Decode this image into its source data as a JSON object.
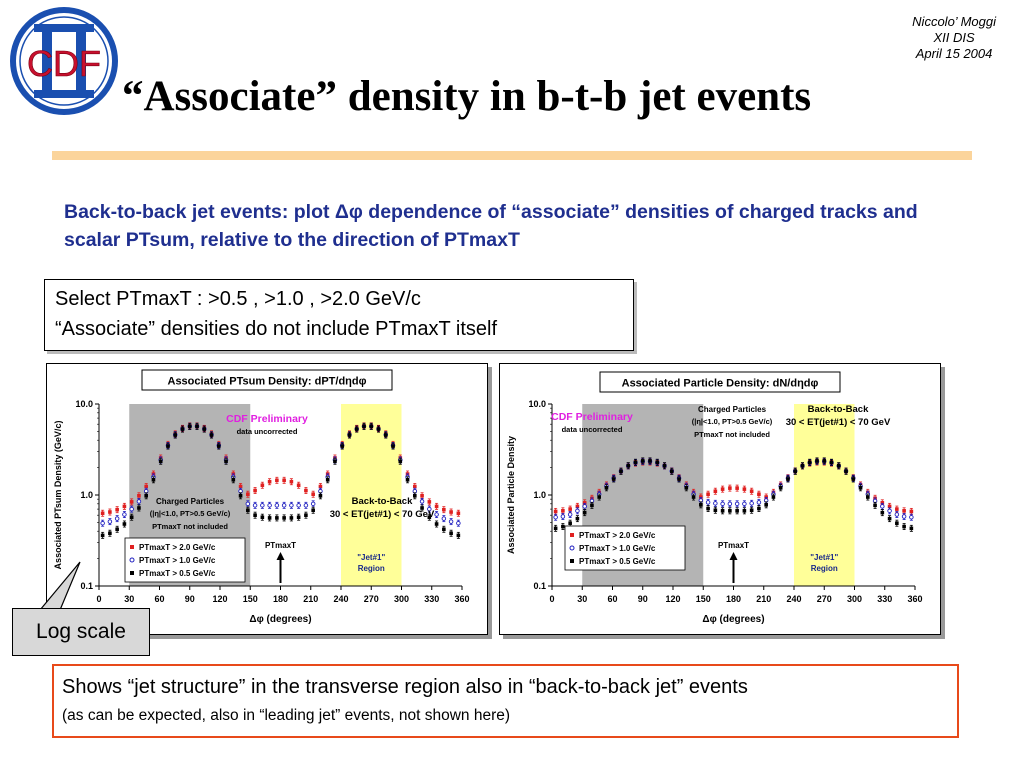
{
  "author": {
    "line1": "Niccolo’ Moggi",
    "line2": "XII DIS",
    "line3": "April 15 2004"
  },
  "logo": {
    "text": "CDF",
    "accent": "#c8102e",
    "bar": "#1a4fb0"
  },
  "title": "“Associate” density in b-t-b jet events",
  "intro": "Back-to-back jet events: plot Δφ dependence of “associate” densities of charged tracks and scalar PTsum, relative to the direction of PTmaxT",
  "select": {
    "line1": "Select PTmaxT : >0.5 , >1.0 , >2.0 GeV/c",
    "line2": "“Associate” densities do not include PTmaxT itself"
  },
  "callout": "Log scale",
  "bottom": {
    "main": "Shows “jet structure” in the transverse region also in “back-to-back jet” events",
    "sub": "(as can be expected, also in “leading jet” events, not shown here)"
  },
  "colors": {
    "intro": "#1f2f8f",
    "rule": "#fbd49b",
    "bottom_border": "#e84a1a",
    "shade": "#b4b4b4",
    "jet_region": "#ffff99",
    "prelim": "#e020e0"
  },
  "chart_data": [
    {
      "type": "scatter",
      "title": "Associated PTsum Density: dPT/dηdφ",
      "xlabel": "Δφ  (degrees)",
      "ylabel": "Associated PTsum Density (GeV/c)",
      "log_y": true,
      "xlim": [
        0,
        360
      ],
      "ylim": [
        0.1,
        10.0
      ],
      "xticks": [
        "0",
        "30",
        "60",
        "90",
        "120",
        "150",
        "180",
        "210",
        "240",
        "270",
        "300",
        "330",
        "360"
      ],
      "yticks": [
        "0.1",
        "1.0",
        "10.0"
      ],
      "x": [
        3.6,
        10.8,
        18,
        25.2,
        32.4,
        39.6,
        46.8,
        54,
        61.2,
        68.4,
        75.6,
        82.8,
        90,
        97.2,
        104.4,
        111.6,
        118.8,
        126,
        133.2,
        140.4,
        147.6,
        154.8,
        162,
        169.2,
        176.4,
        183.6,
        190.8,
        198,
        205.2,
        212.4,
        219.6,
        226.8,
        234,
        241.2,
        248.4,
        255.6,
        262.8,
        270,
        277.2,
        284.4,
        291.6,
        298.8,
        306,
        313.2,
        320.4,
        327.6,
        334.8,
        342,
        349.2,
        356.4
      ],
      "series": [
        {
          "name": "PTmaxT > 2.0 GeV/c",
          "color": "#e02020",
          "values": [
            0.63,
            0.65,
            0.69,
            0.75,
            0.84,
            0.98,
            1.24,
            1.7,
            2.55,
            3.6,
            4.7,
            5.4,
            5.75,
            5.75,
            5.4,
            4.7,
            3.6,
            2.55,
            1.7,
            1.24,
            1.02,
            1.12,
            1.28,
            1.4,
            1.45,
            1.45,
            1.4,
            1.28,
            1.12,
            1.02,
            1.24,
            1.7,
            2.55,
            3.6,
            4.7,
            5.4,
            5.75,
            5.75,
            5.4,
            4.7,
            3.6,
            2.55,
            1.7,
            1.24,
            0.98,
            0.84,
            0.75,
            0.69,
            0.65,
            0.63
          ]
        },
        {
          "name": "PTmaxT > 1.0 GeV/c",
          "color": "#2020c0",
          "values": [
            0.49,
            0.51,
            0.55,
            0.61,
            0.7,
            0.85,
            1.1,
            1.58,
            2.43,
            3.5,
            4.6,
            5.32,
            5.69,
            5.69,
            5.32,
            4.6,
            3.5,
            2.43,
            1.58,
            1.1,
            0.8,
            0.77,
            0.77,
            0.77,
            0.77,
            0.77,
            0.77,
            0.77,
            0.77,
            0.8,
            1.1,
            1.58,
            2.43,
            3.5,
            4.6,
            5.32,
            5.69,
            5.69,
            5.32,
            4.6,
            3.5,
            2.43,
            1.58,
            1.1,
            0.85,
            0.7,
            0.61,
            0.55,
            0.51,
            0.49
          ]
        },
        {
          "name": "PTmaxT > 0.5 GeV/c",
          "color": "#000000",
          "values": [
            0.36,
            0.38,
            0.42,
            0.48,
            0.57,
            0.72,
            0.98,
            1.47,
            2.35,
            3.45,
            4.56,
            5.3,
            5.68,
            5.68,
            5.3,
            4.56,
            3.45,
            2.35,
            1.47,
            0.98,
            0.68,
            0.6,
            0.57,
            0.56,
            0.56,
            0.56,
            0.56,
            0.57,
            0.6,
            0.68,
            0.98,
            1.47,
            2.35,
            3.45,
            4.56,
            5.3,
            5.68,
            5.68,
            5.3,
            4.56,
            3.45,
            2.35,
            1.47,
            0.98,
            0.72,
            0.57,
            0.48,
            0.42,
            0.38,
            0.36
          ]
        }
      ],
      "annotations": {
        "prelim": "CDF Preliminary",
        "uncorr": "data uncorrected",
        "cp1": "Charged Particles",
        "cp2": "(|η|<1.0, PT>0.5 GeV/c)",
        "cp3": "PTmaxT not included",
        "btb1": "Back-to-Back",
        "btb2": "30 < ET(jet#1) < 70 GeV",
        "arrow_label": "PTmaxT",
        "jet1": "\"Jet#1\"",
        "jet2": "Region"
      }
    },
    {
      "type": "scatter",
      "title": "Associated Particle Density: dN/dηdφ",
      "xlabel": "Δφ  (degrees)",
      "ylabel": "Associated Particle Density",
      "log_y": true,
      "xlim": [
        0,
        360
      ],
      "ylim": [
        0.1,
        10.0
      ],
      "xticks": [
        "0",
        "30",
        "60",
        "90",
        "120",
        "150",
        "180",
        "210",
        "240",
        "270",
        "300",
        "330",
        "360"
      ],
      "yticks": [
        "0.1",
        "1.0",
        "10.0"
      ],
      "x": [
        3.6,
        10.8,
        18,
        25.2,
        32.4,
        39.6,
        46.8,
        54,
        61.2,
        68.4,
        75.6,
        82.8,
        90,
        97.2,
        104.4,
        111.6,
        118.8,
        126,
        133.2,
        140.4,
        147.6,
        154.8,
        162,
        169.2,
        176.4,
        183.6,
        190.8,
        198,
        205.2,
        212.4,
        219.6,
        226.8,
        234,
        241.2,
        248.4,
        255.6,
        262.8,
        270,
        277.2,
        284.4,
        291.6,
        298.8,
        306,
        313.2,
        320.4,
        327.6,
        334.8,
        342,
        349.2,
        356.4
      ],
      "series": [
        {
          "name": "PTmaxT > 2.0 GeV/c",
          "color": "#e02020",
          "values": [
            0.66,
            0.67,
            0.7,
            0.75,
            0.82,
            0.92,
            1.07,
            1.29,
            1.55,
            1.84,
            2.08,
            2.24,
            2.3,
            2.3,
            2.24,
            2.08,
            1.84,
            1.55,
            1.29,
            1.07,
            0.95,
            1.02,
            1.1,
            1.16,
            1.19,
            1.19,
            1.16,
            1.1,
            1.02,
            0.95,
            1.07,
            1.29,
            1.55,
            1.84,
            2.08,
            2.24,
            2.3,
            2.3,
            2.24,
            2.08,
            1.84,
            1.55,
            1.29,
            1.07,
            0.92,
            0.82,
            0.75,
            0.7,
            0.67,
            0.66
          ]
        },
        {
          "name": "PTmaxT > 1.0 GeV/c",
          "color": "#2020c0",
          "values": [
            0.57,
            0.58,
            0.61,
            0.67,
            0.75,
            0.86,
            1.02,
            1.25,
            1.53,
            1.83,
            2.09,
            2.27,
            2.34,
            2.34,
            2.27,
            2.09,
            1.83,
            1.53,
            1.25,
            1.02,
            0.87,
            0.83,
            0.81,
            0.8,
            0.8,
            0.8,
            0.8,
            0.81,
            0.83,
            0.87,
            1.02,
            1.25,
            1.53,
            1.83,
            2.09,
            2.27,
            2.34,
            2.34,
            2.27,
            2.09,
            1.83,
            1.53,
            1.25,
            1.02,
            0.86,
            0.75,
            0.67,
            0.61,
            0.58,
            0.57
          ]
        },
        {
          "name": "PTmaxT > 0.5 GeV/c",
          "color": "#000000",
          "values": [
            0.43,
            0.45,
            0.49,
            0.55,
            0.64,
            0.77,
            0.95,
            1.2,
            1.5,
            1.82,
            2.1,
            2.29,
            2.37,
            2.37,
            2.29,
            2.1,
            1.82,
            1.5,
            1.2,
            0.95,
            0.78,
            0.71,
            0.68,
            0.67,
            0.67,
            0.67,
            0.67,
            0.68,
            0.71,
            0.78,
            0.95,
            1.2,
            1.5,
            1.82,
            2.1,
            2.29,
            2.37,
            2.37,
            2.29,
            2.1,
            1.82,
            1.5,
            1.2,
            0.95,
            0.77,
            0.64,
            0.55,
            0.49,
            0.45,
            0.43
          ]
        }
      ],
      "annotations": {
        "prelim": "CDF Preliminary",
        "uncorr": "data uncorrected",
        "cp1": "Charged Particles",
        "cp2": "(|η|<1.0, PT>0.5 GeV/c)",
        "cp3": "PTmaxT not included",
        "btb1": "Back-to-Back",
        "btb2": "30 < ET(jet#1) < 70 GeV",
        "arrow_label": "PTmaxT",
        "jet1": "\"Jet#1\"",
        "jet2": "Region"
      }
    }
  ]
}
